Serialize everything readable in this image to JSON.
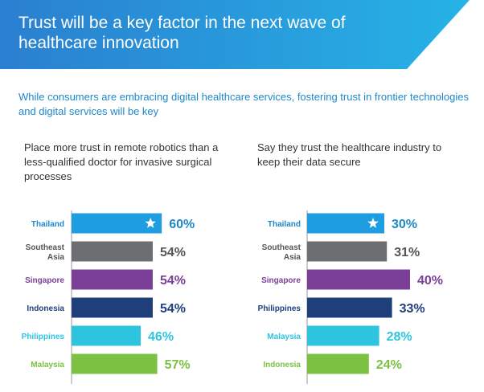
{
  "header": {
    "title": "Trust will be a key factor in the next wave of healthcare innovation",
    "subtitle": "While consumers are embracing digital healthcare services, fostering trust in frontier technologies and digital services will be key"
  },
  "colors": {
    "banner_start": "#2a7fd0",
    "banner_end": "#26b3e6",
    "gray": "#6d6e71",
    "purple": "#7b3f98",
    "navy": "#1f3f7a",
    "cyan": "#2ec4e0",
    "green": "#7cc142",
    "blue": "#1e9ee0"
  },
  "chart_data": [
    {
      "type": "bar",
      "orientation": "horizontal",
      "title": "Place more trust in remote robotics than a less-qualified doctor for invasive surgical processes",
      "categories": [
        "Thailand",
        "Southeast Asia",
        "Singapore",
        "Indonesia",
        "Philippines",
        "Malaysia"
      ],
      "values": [
        60,
        54,
        54,
        54,
        46,
        57
      ],
      "labels": [
        "60%",
        "54%",
        "54%",
        "54%",
        "46%",
        "57%"
      ],
      "bar_colors": [
        "#1e9ee0",
        "#6d6e71",
        "#7b3f98",
        "#1f3f7a",
        "#2ec4e0",
        "#7cc142"
      ],
      "label_colors": [
        "#1e88c9",
        "#555555",
        "#7b3f98",
        "#1f3f7a",
        "#2ec4e0",
        "#7cc142"
      ],
      "highlight": "Thailand",
      "highlight_icon": "star-icon"
    },
    {
      "type": "bar",
      "orientation": "horizontal",
      "title": "Say they trust the healthcare industry to keep their data secure",
      "categories": [
        "Thailand",
        "Southeast Asia",
        "Singapore",
        "Philippines",
        "Malaysia",
        "Indonesia"
      ],
      "values": [
        30,
        31,
        40,
        33,
        28,
        24
      ],
      "labels": [
        "30%",
        "31%",
        "40%",
        "33%",
        "28%",
        "24%"
      ],
      "bar_colors": [
        "#1e9ee0",
        "#6d6e71",
        "#7b3f98",
        "#1f3f7a",
        "#2ec4e0",
        "#7cc142"
      ],
      "label_colors": [
        "#1e88c9",
        "#555555",
        "#7b3f98",
        "#1f3f7a",
        "#2ec4e0",
        "#7cc142"
      ],
      "highlight": "Thailand",
      "highlight_icon": "star-icon"
    }
  ]
}
